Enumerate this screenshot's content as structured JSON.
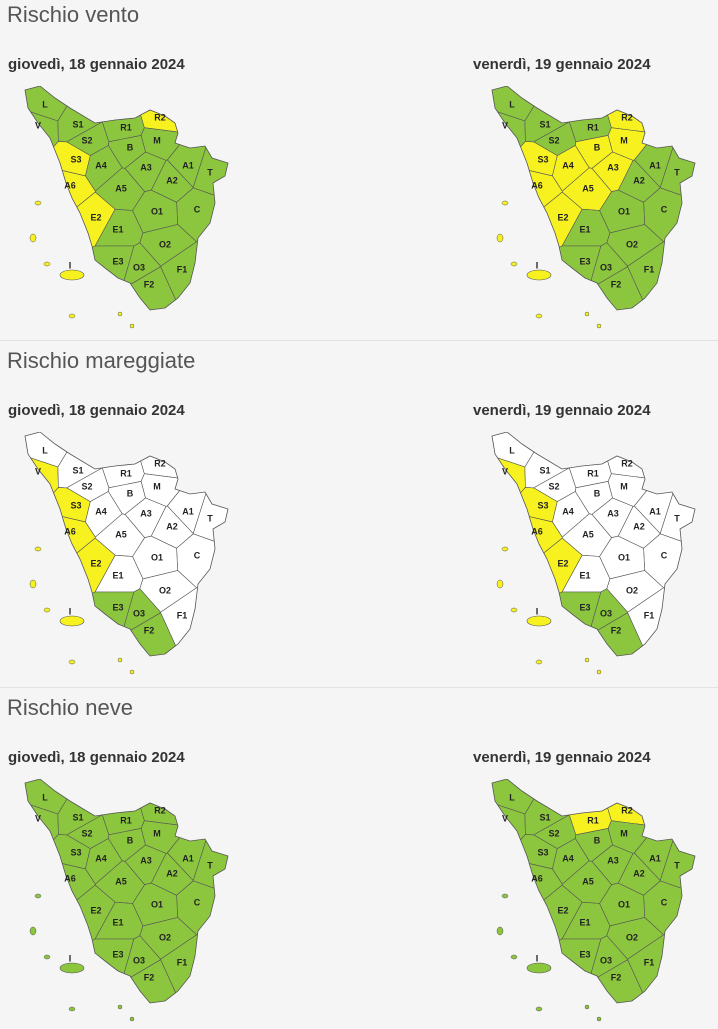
{
  "zone_labels": [
    "L",
    "V",
    "S1",
    "S2",
    "S3",
    "R1",
    "R2",
    "M",
    "B",
    "A1",
    "A2",
    "A3",
    "A4",
    "A5",
    "A6",
    "T",
    "C",
    "E1",
    "E2",
    "E3",
    "O1",
    "O2",
    "O3",
    "F1",
    "F2",
    "I"
  ],
  "sections": [
    {
      "title": "Rischio vento",
      "maps": [
        {
          "date": "giovedì, 18 gennaio 2024",
          "zone_colors": [
            "#8cc63f",
            "#8cc63f",
            "#8cc63f",
            "#8cc63f",
            "#f7f21f",
            "#8cc63f",
            "#f7f21f",
            "#8cc63f",
            "#8cc63f",
            "#8cc63f",
            "#8cc63f",
            "#8cc63f",
            "#8cc63f",
            "#8cc63f",
            "#f7f21f",
            "#8cc63f",
            "#8cc63f",
            "#8cc63f",
            "#f7f21f",
            "#8cc63f",
            "#8cc63f",
            "#8cc63f",
            "#8cc63f",
            "#8cc63f",
            "#8cc63f",
            "#f7f21f"
          ]
        },
        {
          "date": "venerdì, 19 gennaio 2024",
          "zone_colors": [
            "#8cc63f",
            "#8cc63f",
            "#8cc63f",
            "#8cc63f",
            "#f7f21f",
            "#8cc63f",
            "#f7f21f",
            "#f7f21f",
            "#f7f21f",
            "#8cc63f",
            "#8cc63f",
            "#f7f21f",
            "#f7f21f",
            "#f7f21f",
            "#f7f21f",
            "#8cc63f",
            "#8cc63f",
            "#8cc63f",
            "#f7f21f",
            "#8cc63f",
            "#8cc63f",
            "#8cc63f",
            "#8cc63f",
            "#8cc63f",
            "#8cc63f",
            "#f7f21f"
          ]
        }
      ]
    },
    {
      "title": "Rischio mareggiate",
      "maps": [
        {
          "date": "giovedì, 18 gennaio 2024",
          "zone_colors": [
            "#ffffff",
            "#f7f21f",
            "#ffffff",
            "#ffffff",
            "#f7f21f",
            "#ffffff",
            "#ffffff",
            "#ffffff",
            "#ffffff",
            "#ffffff",
            "#ffffff",
            "#ffffff",
            "#ffffff",
            "#ffffff",
            "#f7f21f",
            "#ffffff",
            "#ffffff",
            "#ffffff",
            "#f7f21f",
            "#8cc63f",
            "#ffffff",
            "#ffffff",
            "#8cc63f",
            "#ffffff",
            "#8cc63f",
            "#f7f21f"
          ]
        },
        {
          "date": "venerdì, 19 gennaio 2024",
          "zone_colors": [
            "#ffffff",
            "#f7f21f",
            "#ffffff",
            "#ffffff",
            "#f7f21f",
            "#ffffff",
            "#ffffff",
            "#ffffff",
            "#ffffff",
            "#ffffff",
            "#ffffff",
            "#ffffff",
            "#ffffff",
            "#ffffff",
            "#f7f21f",
            "#ffffff",
            "#ffffff",
            "#ffffff",
            "#f7f21f",
            "#8cc63f",
            "#ffffff",
            "#ffffff",
            "#8cc63f",
            "#ffffff",
            "#8cc63f",
            "#f7f21f"
          ]
        }
      ]
    },
    {
      "title": "Rischio neve",
      "maps": [
        {
          "date": "giovedì, 18 gennaio 2024",
          "zone_colors": [
            "#8cc63f",
            "#8cc63f",
            "#8cc63f",
            "#8cc63f",
            "#8cc63f",
            "#8cc63f",
            "#8cc63f",
            "#8cc63f",
            "#8cc63f",
            "#8cc63f",
            "#8cc63f",
            "#8cc63f",
            "#8cc63f",
            "#8cc63f",
            "#8cc63f",
            "#8cc63f",
            "#8cc63f",
            "#8cc63f",
            "#8cc63f",
            "#8cc63f",
            "#8cc63f",
            "#8cc63f",
            "#8cc63f",
            "#8cc63f",
            "#8cc63f",
            "#8cc63f"
          ]
        },
        {
          "date": "venerdì, 19 gennaio 2024",
          "zone_colors": [
            "#8cc63f",
            "#8cc63f",
            "#8cc63f",
            "#8cc63f",
            "#8cc63f",
            "#f7f21f",
            "#f7f21f",
            "#8cc63f",
            "#8cc63f",
            "#8cc63f",
            "#8cc63f",
            "#8cc63f",
            "#8cc63f",
            "#8cc63f",
            "#8cc63f",
            "#8cc63f",
            "#8cc63f",
            "#8cc63f",
            "#8cc63f",
            "#8cc63f",
            "#8cc63f",
            "#8cc63f",
            "#8cc63f",
            "#8cc63f",
            "#8cc63f",
            "#8cc63f"
          ]
        }
      ]
    }
  ]
}
